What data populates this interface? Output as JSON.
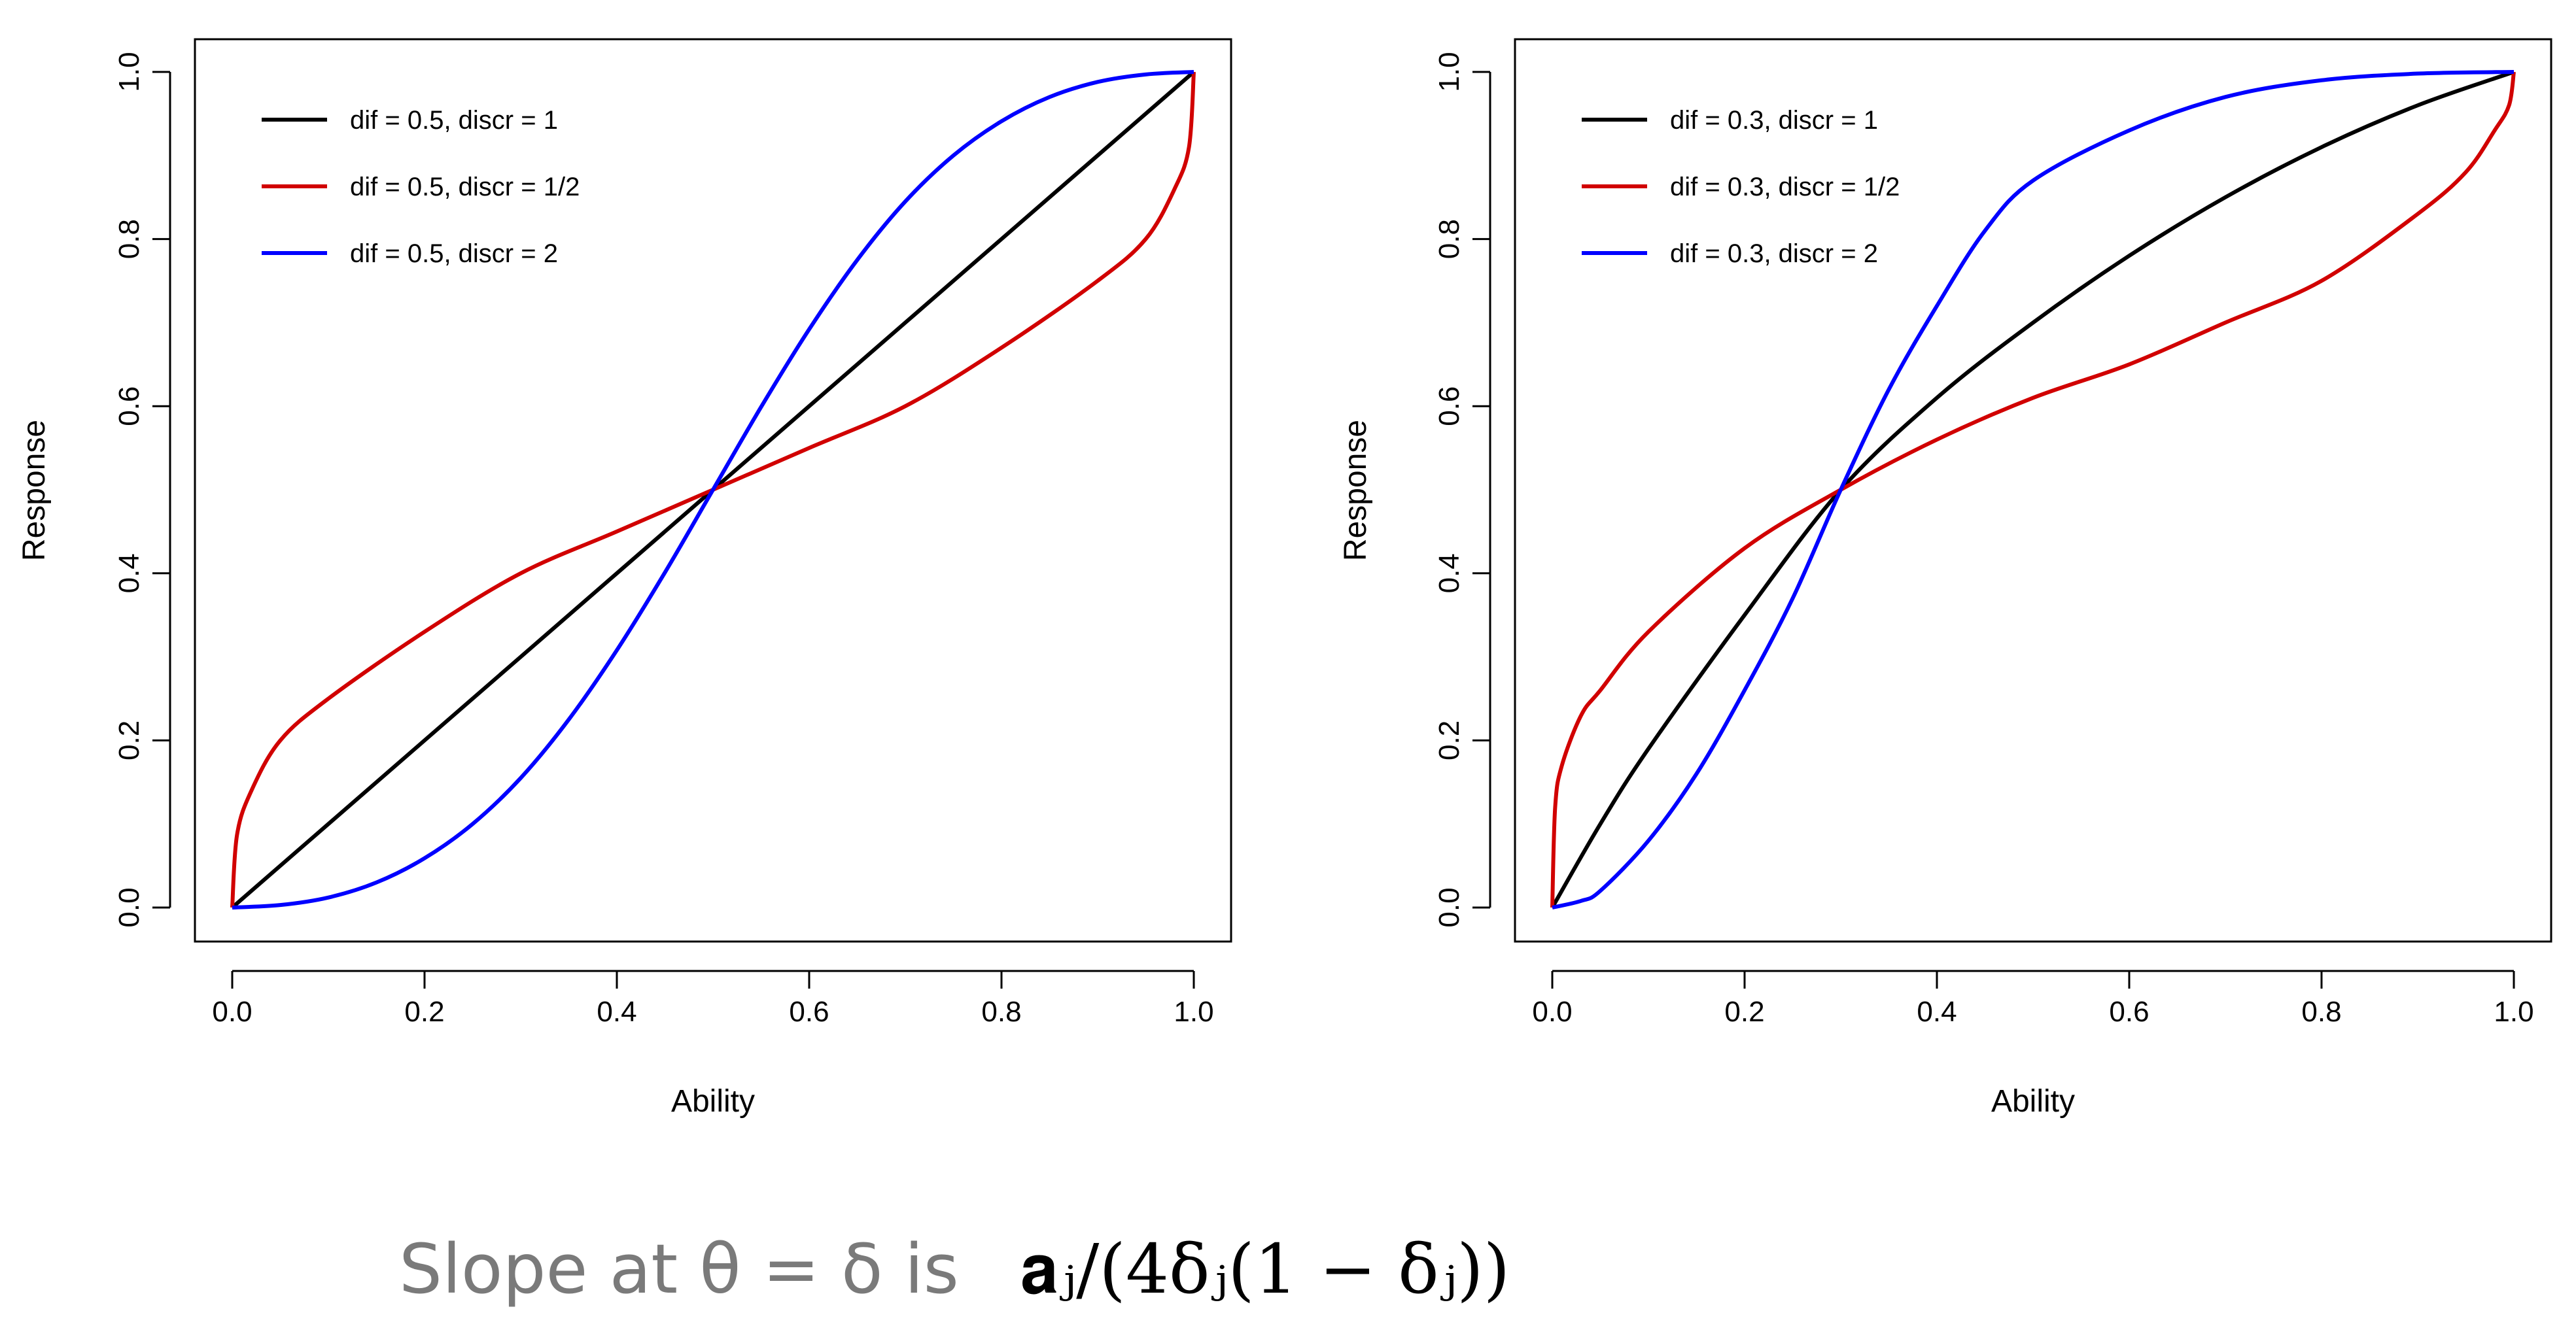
{
  "chart_data": [
    {
      "type": "line",
      "xlabel": "Ability",
      "ylabel": "Response",
      "xlim": [
        0,
        1
      ],
      "ylim": [
        0,
        1
      ],
      "xticks": [
        "0.0",
        "0.2",
        "0.4",
        "0.6",
        "0.8",
        "1.0"
      ],
      "yticks": [
        "0.0",
        "0.2",
        "0.4",
        "0.6",
        "0.8",
        "1.0"
      ],
      "legend_position": "top-left",
      "series": [
        {
          "name": "dif = 0.5, discr = 1",
          "color": "#000000",
          "x": [
            0,
            0.1,
            0.2,
            0.3,
            0.4,
            0.5,
            0.6,
            0.7,
            0.8,
            0.9,
            1.0
          ],
          "y": [
            0,
            0.1,
            0.2,
            0.3,
            0.4,
            0.5,
            0.6,
            0.7,
            0.8,
            0.9,
            1.0
          ]
        },
        {
          "name": "dif = 0.5, discr = 1/2",
          "color": "#d10000",
          "x": [
            0,
            0.005,
            0.02,
            0.05,
            0.1,
            0.2,
            0.3,
            0.4,
            0.5,
            0.6,
            0.7,
            0.8,
            0.9,
            0.95,
            0.98,
            0.995,
            1.0
          ],
          "y": [
            0,
            0.087,
            0.14,
            0.2,
            0.25,
            0.33,
            0.4,
            0.45,
            0.5,
            0.55,
            0.6,
            0.67,
            0.75,
            0.8,
            0.86,
            0.91,
            1.0
          ]
        },
        {
          "name": "dif = 0.5, discr = 2",
          "color": "#0000ff",
          "x": [
            0,
            0.05,
            0.1,
            0.15,
            0.2,
            0.25,
            0.3,
            0.35,
            0.4,
            0.45,
            0.5,
            0.55,
            0.6,
            0.65,
            0.7,
            0.75,
            0.8,
            0.85,
            0.9,
            0.95,
            1.0
          ],
          "y": [
            0,
            0.003,
            0.012,
            0.03,
            0.059,
            0.1,
            0.155,
            0.225,
            0.308,
            0.401,
            0.5,
            0.599,
            0.692,
            0.775,
            0.845,
            0.9,
            0.941,
            0.97,
            0.988,
            0.997,
            1.0
          ]
        }
      ]
    },
    {
      "type": "line",
      "xlabel": "Ability",
      "ylabel": "Response",
      "xlim": [
        0,
        1
      ],
      "ylim": [
        0,
        1
      ],
      "xticks": [
        "0.0",
        "0.2",
        "0.4",
        "0.6",
        "0.8",
        "1.0"
      ],
      "yticks": [
        "0.0",
        "0.2",
        "0.4",
        "0.6",
        "0.8",
        "1.0"
      ],
      "legend_position": "top-left",
      "series": [
        {
          "name": "dif = 0.3, discr = 1",
          "color": "#000000",
          "x": [
            0,
            0.05,
            0.1,
            0.2,
            0.3,
            0.4,
            0.5,
            0.6,
            0.7,
            0.8,
            0.9,
            1.0
          ],
          "y": [
            0,
            0.1,
            0.19,
            0.35,
            0.5,
            0.61,
            0.7,
            0.78,
            0.85,
            0.91,
            0.96,
            1.0
          ]
        },
        {
          "name": "dif = 0.3, discr = 1/2",
          "color": "#d10000",
          "x": [
            0,
            0.003,
            0.01,
            0.03,
            0.05,
            0.1,
            0.2,
            0.3,
            0.4,
            0.5,
            0.6,
            0.7,
            0.8,
            0.9,
            0.95,
            0.98,
            0.995,
            1.0
          ],
          "y": [
            0,
            0.12,
            0.17,
            0.23,
            0.26,
            0.33,
            0.43,
            0.5,
            0.56,
            0.61,
            0.65,
            0.7,
            0.75,
            0.83,
            0.88,
            0.93,
            0.96,
            1.0
          ]
        },
        {
          "name": "dif = 0.3, discr = 2",
          "color": "#0000ff",
          "x": [
            0,
            0.03,
            0.05,
            0.1,
            0.15,
            0.2,
            0.25,
            0.3,
            0.35,
            0.4,
            0.45,
            0.5,
            0.6,
            0.7,
            0.8,
            0.9,
            1.0
          ],
          "y": [
            0,
            0.008,
            0.02,
            0.08,
            0.16,
            0.26,
            0.37,
            0.5,
            0.62,
            0.72,
            0.81,
            0.87,
            0.93,
            0.97,
            0.99,
            0.998,
            1.0
          ]
        }
      ]
    }
  ],
  "caption": {
    "text": "Slope at θ = δ is",
    "formula": "𝐚ⱼ/(4δⱼ(1 − δⱼ))"
  }
}
